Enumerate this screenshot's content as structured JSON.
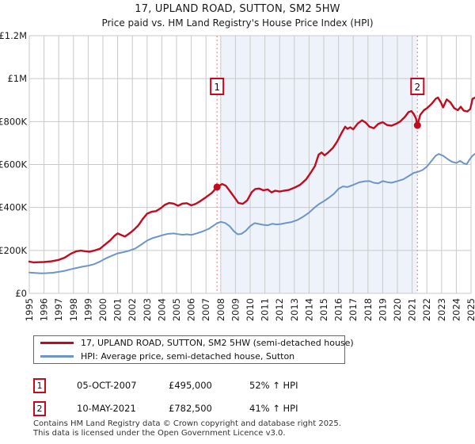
{
  "title": "17, UPLAND ROAD, SUTTON, SM2 5HW",
  "subtitle": "Price paid vs. HM Land Registry's House Price Index (HPI)",
  "colors": {
    "property_red": "#c00c1e",
    "hpi_blue": "#6d96c8",
    "dashed_marker": "#f28b8b",
    "shade": "#eef2fb",
    "grid": "#c9c9c9",
    "text": "#1a1a1a"
  },
  "chart_data": {
    "type": "line",
    "unit": "GBP_thousands",
    "x_ticks": [
      1995,
      1996,
      1997,
      1998,
      1999,
      2000,
      2001,
      2002,
      2003,
      2004,
      2005,
      2006,
      2007,
      2008,
      2009,
      2010,
      2011,
      2012,
      2013,
      2014,
      2015,
      2016,
      2017,
      2018,
      2019,
      2020,
      2021,
      2022,
      2023,
      2024,
      2025
    ],
    "y_ticks_k": [
      0,
      200,
      400,
      600,
      800,
      1000,
      1200
    ],
    "y_tick_labels": [
      "£0",
      "£200K",
      "£400K",
      "£600K",
      "£800K",
      "£1M",
      "£1.2M"
    ],
    "xlim": [
      1995,
      2025.3
    ],
    "ylim_k": [
      0,
      1200
    ],
    "grid": true,
    "legend_position": "bottom",
    "shaded_span": {
      "from_year": 2008.0,
      "to_year": 2021.36
    },
    "markers": [
      {
        "label": "1",
        "year": 2007.75,
        "value_k": 495
      },
      {
        "label": "2",
        "year": 2021.36,
        "value_k": 782.5
      }
    ],
    "series": [
      {
        "name": "17, UPLAND ROAD, SUTTON, SM2 5HW (semi-detached house)",
        "color": "#c00c1e",
        "width": 2.4,
        "points": [
          [
            1995.0,
            148
          ],
          [
            1995.3,
            144
          ],
          [
            1995.6,
            145
          ],
          [
            1996.0,
            146
          ],
          [
            1996.5,
            149
          ],
          [
            1997.0,
            156
          ],
          [
            1997.4,
            166
          ],
          [
            1997.8,
            184
          ],
          [
            1998.2,
            196
          ],
          [
            1998.5,
            199
          ],
          [
            1998.8,
            196
          ],
          [
            1999.1,
            194
          ],
          [
            1999.4,
            199
          ],
          [
            1999.8,
            208
          ],
          [
            2000.1,
            225
          ],
          [
            2000.5,
            247
          ],
          [
            2000.8,
            269
          ],
          [
            2001.0,
            279
          ],
          [
            2001.3,
            270
          ],
          [
            2001.5,
            265
          ],
          [
            2001.8,
            279
          ],
          [
            2002.1,
            296
          ],
          [
            2002.4,
            316
          ],
          [
            2002.7,
            346
          ],
          [
            2003.0,
            371
          ],
          [
            2003.3,
            380
          ],
          [
            2003.6,
            383
          ],
          [
            2003.9,
            395
          ],
          [
            2004.2,
            412
          ],
          [
            2004.5,
            421
          ],
          [
            2004.8,
            418
          ],
          [
            2005.1,
            408
          ],
          [
            2005.4,
            418
          ],
          [
            2005.7,
            420
          ],
          [
            2006.0,
            410
          ],
          [
            2006.3,
            417
          ],
          [
            2006.6,
            429
          ],
          [
            2007.0,
            448
          ],
          [
            2007.4,
            468
          ],
          [
            2007.75,
            495
          ],
          [
            2008.1,
            509
          ],
          [
            2008.35,
            501
          ],
          [
            2008.6,
            478
          ],
          [
            2008.9,
            450
          ],
          [
            2009.2,
            421
          ],
          [
            2009.5,
            417
          ],
          [
            2009.8,
            433
          ],
          [
            2010.1,
            471
          ],
          [
            2010.35,
            486
          ],
          [
            2010.6,
            488
          ],
          [
            2010.9,
            480
          ],
          [
            2011.2,
            484
          ],
          [
            2011.45,
            470
          ],
          [
            2011.7,
            478
          ],
          [
            2012.0,
            474
          ],
          [
            2012.3,
            478
          ],
          [
            2012.6,
            481
          ],
          [
            2013.0,
            492
          ],
          [
            2013.4,
            506
          ],
          [
            2013.8,
            531
          ],
          [
            2014.1,
            561
          ],
          [
            2014.4,
            593
          ],
          [
            2014.65,
            646
          ],
          [
            2014.85,
            656
          ],
          [
            2015.05,
            643
          ],
          [
            2015.3,
            656
          ],
          [
            2015.6,
            676
          ],
          [
            2015.9,
            706
          ],
          [
            2016.2,
            746
          ],
          [
            2016.45,
            776
          ],
          [
            2016.6,
            766
          ],
          [
            2016.8,
            773
          ],
          [
            2017.0,
            764
          ],
          [
            2017.3,
            791
          ],
          [
            2017.6,
            806
          ],
          [
            2017.85,
            795
          ],
          [
            2018.1,
            776
          ],
          [
            2018.4,
            769
          ],
          [
            2018.7,
            789
          ],
          [
            2019.0,
            797
          ],
          [
            2019.3,
            784
          ],
          [
            2019.6,
            781
          ],
          [
            2019.9,
            789
          ],
          [
            2020.2,
            801
          ],
          [
            2020.5,
            821
          ],
          [
            2020.75,
            844
          ],
          [
            2020.95,
            849
          ],
          [
            2021.1,
            836
          ],
          [
            2021.25,
            816
          ],
          [
            2021.36,
            782.5
          ],
          [
            2021.55,
            831
          ],
          [
            2021.8,
            853
          ],
          [
            2022.0,
            862
          ],
          [
            2022.3,
            881
          ],
          [
            2022.6,
            906
          ],
          [
            2022.75,
            912
          ],
          [
            2022.95,
            889
          ],
          [
            2023.1,
            866
          ],
          [
            2023.35,
            903
          ],
          [
            2023.6,
            889
          ],
          [
            2023.85,
            863
          ],
          [
            2024.1,
            853
          ],
          [
            2024.3,
            869
          ],
          [
            2024.5,
            851
          ],
          [
            2024.75,
            847
          ],
          [
            2024.95,
            859
          ],
          [
            2025.1,
            906
          ],
          [
            2025.25,
            911
          ]
        ]
      },
      {
        "name": "HPI: Average price, semi-detached house, Sutton",
        "color": "#6d96c8",
        "width": 2,
        "points": [
          [
            1995.0,
            97
          ],
          [
            1995.4,
            95
          ],
          [
            1995.8,
            93
          ],
          [
            1996.2,
            94
          ],
          [
            1996.6,
            96
          ],
          [
            1997.0,
            100
          ],
          [
            1997.4,
            105
          ],
          [
            1997.8,
            112
          ],
          [
            1998.2,
            118
          ],
          [
            1998.6,
            124
          ],
          [
            1999.0,
            129
          ],
          [
            1999.4,
            136
          ],
          [
            1999.8,
            148
          ],
          [
            2000.2,
            163
          ],
          [
            2000.6,
            175
          ],
          [
            2001.0,
            186
          ],
          [
            2001.4,
            192
          ],
          [
            2001.8,
            199
          ],
          [
            2002.2,
            209
          ],
          [
            2002.6,
            227
          ],
          [
            2003.0,
            246
          ],
          [
            2003.4,
            258
          ],
          [
            2003.8,
            266
          ],
          [
            2004.1,
            272
          ],
          [
            2004.4,
            277
          ],
          [
            2004.8,
            279
          ],
          [
            2005.1,
            276
          ],
          [
            2005.4,
            273
          ],
          [
            2005.7,
            275
          ],
          [
            2006.0,
            272
          ],
          [
            2006.4,
            280
          ],
          [
            2006.8,
            289
          ],
          [
            2007.2,
            301
          ],
          [
            2007.5,
            315
          ],
          [
            2007.75,
            326
          ],
          [
            2008.0,
            333
          ],
          [
            2008.3,
            328
          ],
          [
            2008.6,
            313
          ],
          [
            2008.9,
            289
          ],
          [
            2009.15,
            275
          ],
          [
            2009.4,
            277
          ],
          [
            2009.7,
            291
          ],
          [
            2010.0,
            313
          ],
          [
            2010.3,
            327
          ],
          [
            2010.6,
            323
          ],
          [
            2010.9,
            319
          ],
          [
            2011.2,
            317
          ],
          [
            2011.5,
            324
          ],
          [
            2011.8,
            321
          ],
          [
            2012.1,
            323
          ],
          [
            2012.4,
            327
          ],
          [
            2012.8,
            332
          ],
          [
            2013.2,
            341
          ],
          [
            2013.6,
            357
          ],
          [
            2014.0,
            376
          ],
          [
            2014.4,
            401
          ],
          [
            2014.7,
            417
          ],
          [
            2015.0,
            429
          ],
          [
            2015.3,
            443
          ],
          [
            2015.7,
            464
          ],
          [
            2016.0,
            487
          ],
          [
            2016.3,
            498
          ],
          [
            2016.6,
            495
          ],
          [
            2017.0,
            505
          ],
          [
            2017.4,
            517
          ],
          [
            2017.8,
            522
          ],
          [
            2018.1,
            523
          ],
          [
            2018.4,
            515
          ],
          [
            2018.7,
            512
          ],
          [
            2019.0,
            523
          ],
          [
            2019.3,
            518
          ],
          [
            2019.6,
            515
          ],
          [
            2020.0,
            523
          ],
          [
            2020.4,
            531
          ],
          [
            2020.8,
            548
          ],
          [
            2021.1,
            561
          ],
          [
            2021.4,
            566
          ],
          [
            2021.7,
            574
          ],
          [
            2022.0,
            590
          ],
          [
            2022.3,
            616
          ],
          [
            2022.6,
            641
          ],
          [
            2022.8,
            649
          ],
          [
            2023.1,
            641
          ],
          [
            2023.4,
            626
          ],
          [
            2023.7,
            613
          ],
          [
            2024.0,
            607
          ],
          [
            2024.25,
            617
          ],
          [
            2024.5,
            606
          ],
          [
            2024.7,
            601
          ],
          [
            2024.9,
            623
          ],
          [
            2025.1,
            641
          ],
          [
            2025.25,
            649
          ]
        ]
      }
    ]
  },
  "annotations": [
    {
      "num": "1",
      "date": "05-OCT-2007",
      "price": "£495,000",
      "hpi": "52% ↑ HPI"
    },
    {
      "num": "2",
      "date": "10-MAY-2021",
      "price": "£782,500",
      "hpi": "41% ↑ HPI"
    }
  ],
  "footer": {
    "line1": "Contains HM Land Registry data © Crown copyright and database right 2025.",
    "line2": "This data is licensed under the Open Government Licence v3.0."
  }
}
